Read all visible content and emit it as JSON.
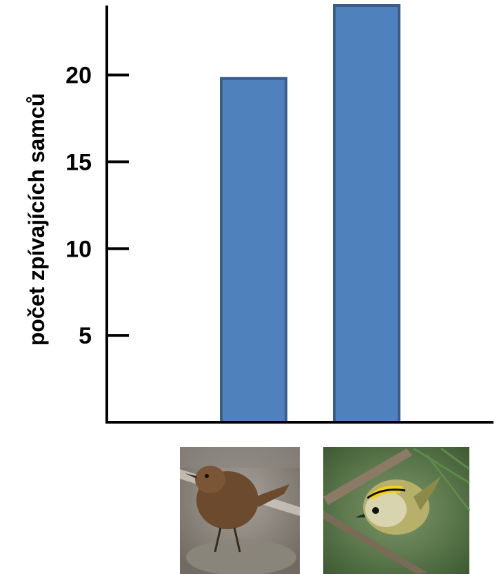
{
  "chart_data": {
    "type": "bar",
    "title": "",
    "xlabel": "",
    "ylabel": "počet zpívajících samců",
    "categories": [
      "",
      ""
    ],
    "category_images": [
      "wren-photo",
      "goldcrest-photo"
    ],
    "values": [
      19.8,
      24
    ],
    "ylim": [
      0,
      24
    ],
    "yticks": [
      5,
      10,
      15,
      20
    ],
    "grid": false,
    "legend": "none",
    "colors": {
      "bar_fill": "#4f81bd",
      "bar_stroke": "#385d8a",
      "axis": "#000000"
    }
  }
}
